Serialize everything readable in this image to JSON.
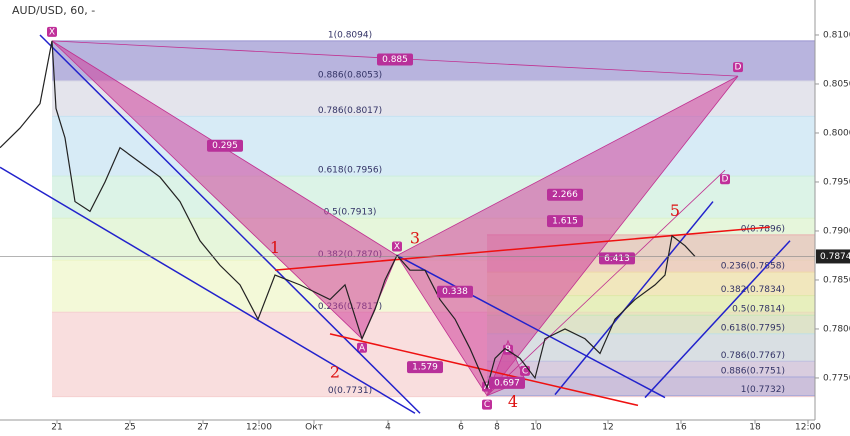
{
  "chart_data": {
    "type": "line",
    "title": "AUD/USD, 60, -",
    "xlim": [
      0,
      163
    ],
    "ylim": [
      0.77071,
      0.81357
    ],
    "xticks": [
      {
        "value": 11.4,
        "label": "21"
      },
      {
        "value": 26,
        "label": "25"
      },
      {
        "value": 40.6,
        "label": "27"
      },
      {
        "value": 51.8,
        "label": "12:00"
      },
      {
        "value": 62.8,
        "label": "Окт"
      },
      {
        "value": 77.6,
        "label": "4"
      },
      {
        "value": 92.2,
        "label": "6"
      },
      {
        "value": 99.4,
        "label": "8"
      },
      {
        "value": 107.2,
        "label": "10"
      },
      {
        "value": 121.6,
        "label": "12"
      },
      {
        "value": 136.2,
        "label": "16"
      },
      {
        "value": 151,
        "label": "18"
      },
      {
        "value": 161.6,
        "label": "12:00"
      }
    ],
    "yticks": [
      0.81,
      0.805,
      0.8,
      0.795,
      0.79,
      0.785,
      0.78,
      0.775
    ],
    "yticks_labels": [
      "0.8100",
      "0.8050",
      "0.8000",
      "0.7950",
      "0.7900",
      "0.7850",
      "0.7800",
      "0.7750"
    ],
    "last_price": 0.7874,
    "last_price_label": "0.7874",
    "series": [
      {
        "name": "AUD/USD",
        "color": "#222222",
        "x": [
          0,
          4,
          8,
          10.4,
          11.2,
          13,
          15,
          18,
          21,
          24,
          28,
          32,
          36,
          40,
          44,
          48,
          51.6,
          55,
          60,
          66,
          69,
          72.4,
          75,
          77,
          79.4,
          82,
          85,
          88,
          91,
          94,
          97.4,
          99,
          101,
          104,
          107,
          109,
          113,
          117,
          120,
          123,
          127,
          131,
          133,
          134.4,
          137,
          139
        ],
        "values": [
          0.7985,
          0.8005,
          0.803,
          0.8094,
          0.8025,
          0.7995,
          0.793,
          0.792,
          0.795,
          0.7985,
          0.797,
          0.7955,
          0.793,
          0.789,
          0.7865,
          0.7845,
          0.781,
          0.7855,
          0.7845,
          0.783,
          0.7845,
          0.779,
          0.782,
          0.785,
          0.7875,
          0.786,
          0.786,
          0.783,
          0.781,
          0.778,
          0.774,
          0.777,
          0.778,
          0.777,
          0.775,
          0.779,
          0.78,
          0.779,
          0.7775,
          0.781,
          0.783,
          0.7845,
          0.7855,
          0.7895,
          0.7885,
          0.7874
        ]
      }
    ],
    "fib_left": {
      "x0": 10.4,
      "levels": [
        {
          "value": 0.8094,
          "label": "1(0.8094)",
          "color": "#9a94d0"
        },
        {
          "value": 0.8053,
          "label": "0.886(0.8053)",
          "color": "#d8d8e4"
        },
        {
          "value": 0.8017,
          "label": "0.786(0.8017)",
          "color": "#c6e2f2"
        },
        {
          "value": 0.7956,
          "label": "0.618(0.7956)",
          "color": "#cdeedd"
        },
        {
          "value": 0.7913,
          "label": "0.5(0.7913)",
          "color": "#dcf2cc"
        },
        {
          "value": 0.787,
          "label": "0.382(0.7870)",
          "color": "#eef6c8"
        },
        {
          "value": 0.7817,
          "label": "0.236(0.7817)",
          "color": "#f6d0d0"
        },
        {
          "value": 0.7731,
          "label": "0(0.7731)",
          "color": "#f6d0d0"
        }
      ]
    },
    "fib_right": {
      "x0": 97.4,
      "levels": [
        {
          "value": 0.7896,
          "label": "0(0.7896)",
          "color": "#e8b0b0"
        },
        {
          "value": 0.7858,
          "label": "0.236(0.7858)",
          "color": "#eed8a8"
        },
        {
          "value": 0.7834,
          "label": "0.382(0.7834)",
          "color": "#dde8a8"
        },
        {
          "value": 0.7814,
          "label": "0.5(0.7814)",
          "color": "#c8e8b8"
        },
        {
          "value": 0.7795,
          "label": "0.618(0.7795)",
          "color": "#bfe0e8"
        },
        {
          "value": 0.7767,
          "label": "0.786(0.7767)",
          "color": "#c0c0e0"
        },
        {
          "value": 0.7751,
          "label": "0.886(0.7751)",
          "color": "#a8a8d8"
        },
        {
          "value": 0.7732,
          "label": "1(0.7732)",
          "color": "#a8a8d8"
        }
      ]
    },
    "patterns": [
      {
        "points": [
          {
            "label": "X",
            "x": 10.4,
            "y": 0.8094
          },
          {
            "label": "A",
            "x": 72.4,
            "y": 0.779
          },
          {
            "label": "X",
            "x": 79.4,
            "y": 0.7875
          },
          {
            "label": "C",
            "x": 97.4,
            "y": 0.7732
          },
          {
            "label": "D",
            "x": 147.6,
            "y": 0.8058
          }
        ]
      },
      {
        "points": [
          {
            "label": "A",
            "x": 97.4,
            "y": 0.7732
          },
          {
            "label": "B",
            "x": 101.6,
            "y": 0.7788
          },
          {
            "label": "C",
            "x": 105,
            "y": 0.7748
          },
          {
            "label": "D",
            "x": 145,
            "y": 0.7962
          }
        ]
      }
    ],
    "ratios": [
      {
        "label": "0.885",
        "x": 79,
        "y": 0.8075
      },
      {
        "label": "0.295",
        "x": 45,
        "y": 0.7987
      },
      {
        "label": "2.266",
        "x": 113,
        "y": 0.7937
      },
      {
        "label": "1.615",
        "x": 113,
        "y": 0.791
      },
      {
        "label": "0.338",
        "x": 91,
        "y": 0.7838
      },
      {
        "label": "1.579",
        "x": 85,
        "y": 0.7761
      },
      {
        "label": "0.697",
        "x": 101.4,
        "y": 0.7745
      },
      {
        "label": "6.413",
        "x": 123.4,
        "y": 0.7872
      }
    ],
    "waves": [
      {
        "label": "1",
        "x": 55,
        "y": 0.7882
      },
      {
        "label": "2",
        "x": 67,
        "y": 0.7755
      },
      {
        "label": "3",
        "x": 83,
        "y": 0.7892
      },
      {
        "label": "4",
        "x": 102.6,
        "y": 0.7725
      },
      {
        "label": "5",
        "x": 135,
        "y": 0.792
      }
    ],
    "trendlines": [
      {
        "color": "#2222cc",
        "x1": 8,
        "y1": 0.81,
        "x2": 84,
        "y2": 0.7714
      },
      {
        "color": "#2222cc",
        "x1": 0,
        "y1": 0.7965,
        "x2": 83,
        "y2": 0.7714
      },
      {
        "color": "#2222cc",
        "x1": 79.4,
        "y1": 0.7875,
        "x2": 133,
        "y2": 0.773
      },
      {
        "color": "#2222cc",
        "x1": 111,
        "y1": 0.7733,
        "x2": 142.6,
        "y2": 0.793
      },
      {
        "color": "#2222cc",
        "x1": 129,
        "y1": 0.773,
        "x2": 158,
        "y2": 0.789
      },
      {
        "color": "#ee1111",
        "x1": 55,
        "y1": 0.786,
        "x2": 154,
        "y2": 0.7904
      },
      {
        "color": "#ee1111",
        "x1": 66,
        "y1": 0.7795,
        "x2": 127.6,
        "y2": 0.7722
      }
    ]
  }
}
